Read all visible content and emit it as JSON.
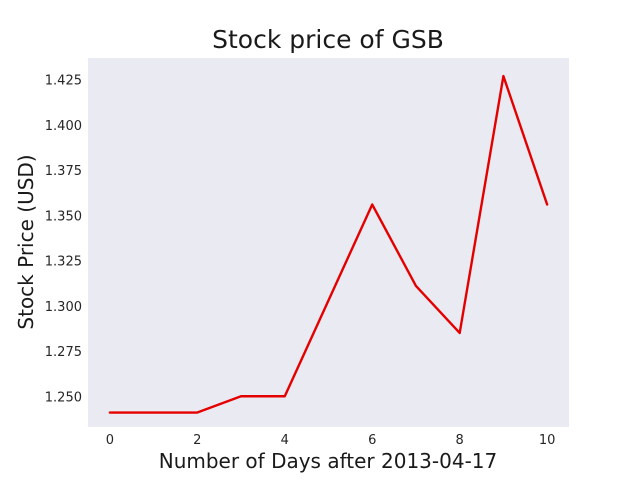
{
  "chart_data": {
    "type": "line",
    "title": "Stock price of GSB",
    "xlabel": "Number of Days after 2013-04-17",
    "ylabel": "Stock Price (USD)",
    "x": [
      0,
      1,
      2,
      3,
      4,
      5,
      6,
      7,
      8,
      9,
      10
    ],
    "xlim": [
      -0.5,
      10.5
    ],
    "ylim": [
      1.233,
      1.437
    ],
    "xticks": [
      0,
      2,
      4,
      6,
      8,
      10
    ],
    "xtick_labels": [
      "0",
      "2",
      "4",
      "6",
      "8",
      "10"
    ],
    "yticks": [
      1.25,
      1.275,
      1.3,
      1.325,
      1.35,
      1.375,
      1.4,
      1.425
    ],
    "ytick_labels": [
      "1.250",
      "1.275",
      "1.300",
      "1.325",
      "1.350",
      "1.375",
      "1.400",
      "1.425"
    ],
    "grid": false,
    "plot_background": "#eaeaf2",
    "series": [
      {
        "color": "#e50000",
        "values": [
          1.241,
          1.241,
          1.241,
          1.25,
          1.25,
          1.303,
          1.356,
          1.311,
          1.285,
          1.427,
          1.356
        ]
      }
    ]
  }
}
